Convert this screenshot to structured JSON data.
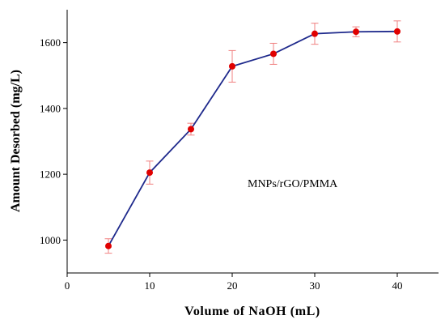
{
  "chart_data": {
    "type": "line",
    "title": "",
    "xlabel": "Volume of NaOH (mL)",
    "ylabel": "Amount Desorbed (mg/L)",
    "xlim": [
      0,
      45
    ],
    "ylim": [
      900,
      1700
    ],
    "x_ticks": [
      0,
      10,
      20,
      30,
      40
    ],
    "y_ticks": [
      1000,
      1200,
      1400,
      1600
    ],
    "grid": false,
    "annotation": "MNPs/rGO/PMMA",
    "series": [
      {
        "x": [
          5,
          10,
          15,
          20,
          25,
          30,
          35,
          40
        ],
        "y": [
          982,
          1205,
          1337,
          1528,
          1566,
          1627,
          1633,
          1634
        ],
        "error": [
          22,
          35,
          18,
          48,
          32,
          32,
          15,
          32
        ]
      }
    ],
    "colors": {
      "line": "#1f2a8c",
      "marker": "#e00000",
      "error_bar": "#f08080",
      "axis": "#000000"
    }
  }
}
